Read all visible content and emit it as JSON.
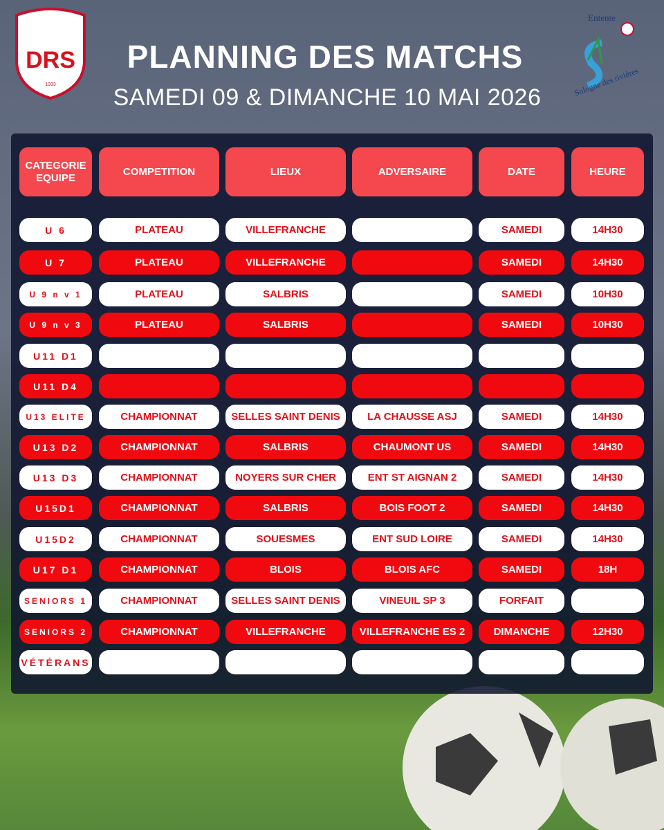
{
  "header": {
    "logo_left": {
      "name": "DRS",
      "year": "1933"
    },
    "logo_right": {
      "top": "Entente",
      "bottom": "Sologne des rivières"
    },
    "title": "PLANNING DES MATCHS",
    "subtitle": "SAMEDI 09 & DIMANCHE 10 MAI 2026"
  },
  "table": {
    "columns": [
      [
        "CATEGORIE",
        "EQUIPE"
      ],
      "COMPETITION",
      "LIEUX",
      "ADVERSAIRE",
      "DATE",
      "HEURE"
    ],
    "rows": [
      [
        "U 6",
        "PLATEAU",
        "VILLEFRANCHE",
        null,
        "SAMEDI",
        "14H30"
      ],
      [
        "U 7",
        "PLATEAU",
        "VILLEFRANCHE",
        null,
        "SAMEDI",
        "14H30"
      ],
      [
        "U 9 n v 1",
        "PLATEAU",
        "SALBRIS",
        null,
        "SAMEDI",
        "10H30"
      ],
      [
        "U 9  n v 3",
        "PLATEAU",
        "SALBRIS",
        null,
        "SAMEDI",
        "10H30"
      ],
      [
        "U11 D1",
        null,
        null,
        null,
        null,
        null
      ],
      [
        "U11 D4",
        null,
        null,
        null,
        null,
        null
      ],
      [
        "U13 ELITE",
        "CHAMPIONNAT",
        "SELLES SAINT DENIS",
        "LA CHAUSSE ASJ",
        "SAMEDI",
        "14H30"
      ],
      [
        "U13 D2",
        "CHAMPIONNAT",
        "SALBRIS",
        "CHAUMONT US",
        "SAMEDI",
        "14H30"
      ],
      [
        "U13 D3",
        "CHAMPIONNAT",
        "NOYERS SUR CHER",
        "ENT ST AIGNAN 2",
        "SAMEDI",
        "14H30"
      ],
      [
        "U15D1",
        "CHAMPIONNAT",
        "SALBRIS",
        "BOIS FOOT 2",
        "SAMEDI",
        "14H30"
      ],
      [
        "U15D2",
        "CHAMPIONNAT",
        "SOUESMES",
        "ENT SUD LOIRE",
        "SAMEDI",
        "14H30"
      ],
      [
        "U17 D1",
        "CHAMPIONNAT",
        "BLOIS",
        "BLOIS AFC",
        "SAMEDI",
        "18H"
      ],
      [
        "SENIORS 1",
        "CHAMPIONNAT",
        "SELLES SAINT DENIS",
        "VINEUIL SP 3",
        "FORFAIT",
        null
      ],
      [
        "SENIORS 2",
        "CHAMPIONNAT",
        "VILLEFRANCHE",
        "VILLEFRANCHE ES 2",
        "DIMANCHE",
        "12H30"
      ],
      [
        "VÉTÉRANS",
        null,
        null,
        null,
        null,
        null
      ]
    ]
  }
}
